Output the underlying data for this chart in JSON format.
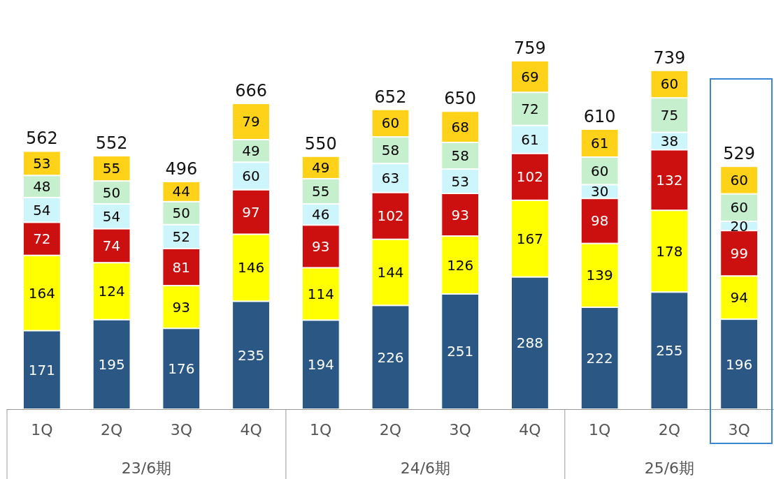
{
  "chart_data": {
    "type": "bar",
    "stacked": true,
    "data_labels": true,
    "categories": [
      "1Q",
      "2Q",
      "3Q",
      "4Q",
      "1Q",
      "2Q",
      "3Q",
      "4Q",
      "1Q",
      "2Q",
      "3Q"
    ],
    "series": [
      {
        "color": "#2a5783",
        "values": [
          171,
          195,
          176,
          235,
          194,
          226,
          251,
          288,
          222,
          255,
          196
        ]
      },
      {
        "color": "#ffff00",
        "values": [
          164,
          124,
          93,
          146,
          114,
          144,
          126,
          167,
          139,
          178,
          94
        ]
      },
      {
        "color": "#cc1010",
        "values": [
          72,
          74,
          81,
          97,
          93,
          102,
          93,
          102,
          98,
          132,
          99
        ]
      },
      {
        "color": "#ccf6fb",
        "values": [
          54,
          54,
          52,
          60,
          46,
          63,
          53,
          61,
          30,
          38,
          20
        ]
      },
      {
        "color": "#c6efce",
        "values": [
          48,
          50,
          50,
          49,
          55,
          58,
          58,
          72,
          60,
          75,
          60
        ]
      },
      {
        "color": "#ffd21a",
        "values": [
          53,
          55,
          44,
          79,
          49,
          60,
          68,
          69,
          61,
          60,
          60
        ]
      }
    ],
    "totals": [
      "562",
      "552",
      "496",
      "666",
      "550",
      "652",
      "650",
      "759",
      "610",
      "739",
      "529"
    ],
    "annotations": [
      "23/6期",
      "24/6期",
      "25/6期"
    ]
  }
}
